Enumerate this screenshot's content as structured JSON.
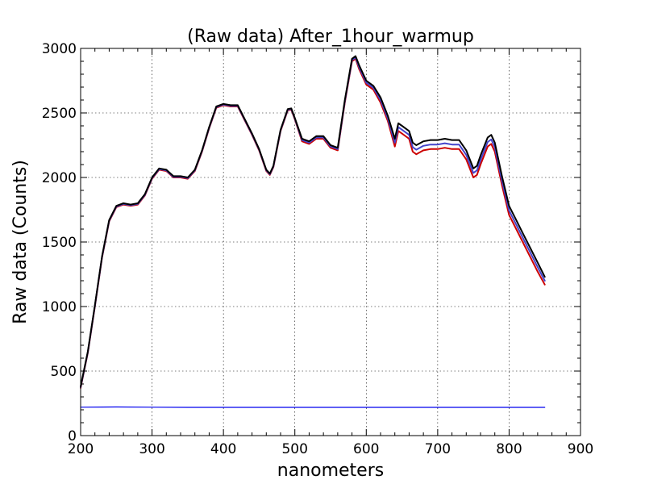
{
  "chart_data": {
    "type": "line",
    "title": "(Raw data) After_1hour_warmup",
    "xlabel": "nanometers",
    "ylabel": "Raw data (Counts)",
    "xlim": [
      200,
      900
    ],
    "ylim": [
      0,
      3000
    ],
    "x_ticks": [
      200,
      300,
      400,
      500,
      600,
      700,
      800,
      900
    ],
    "y_ticks": [
      0,
      500,
      1000,
      1500,
      2000,
      2500,
      3000
    ],
    "x_tick_labels": [
      "200",
      "300",
      "400",
      "500",
      "600",
      "700",
      "800",
      "900"
    ],
    "y_tick_labels": [
      "0",
      "500",
      "1000",
      "1500",
      "2000",
      "2500",
      "3000"
    ],
    "grid": true,
    "series": [
      {
        "color": "#cc0000",
        "x": [
          200,
          210,
          220,
          230,
          240,
          250,
          260,
          270,
          280,
          290,
          300,
          310,
          320,
          330,
          340,
          350,
          360,
          370,
          380,
          390,
          400,
          410,
          420,
          430,
          440,
          450,
          460,
          465,
          470,
          480,
          490,
          495,
          500,
          510,
          520,
          530,
          540,
          550,
          560,
          570,
          580,
          585,
          590,
          600,
          610,
          620,
          630,
          640,
          645,
          650,
          660,
          665,
          670,
          680,
          690,
          700,
          710,
          720,
          730,
          740,
          750,
          755,
          760,
          770,
          775,
          780,
          790,
          800,
          810,
          820,
          830,
          840,
          850
        ],
        "y": [
          370,
          640,
          1000,
          1380,
          1660,
          1770,
          1790,
          1780,
          1790,
          1860,
          1990,
          2060,
          2050,
          2000,
          2000,
          1990,
          2050,
          2200,
          2380,
          2540,
          2560,
          2550,
          2550,
          2440,
          2330,
          2210,
          2050,
          2020,
          2080,
          2360,
          2520,
          2525,
          2450,
          2280,
          2260,
          2300,
          2300,
          2230,
          2210,
          2580,
          2900,
          2920,
          2840,
          2720,
          2680,
          2580,
          2440,
          2240,
          2360,
          2340,
          2300,
          2200,
          2180,
          2210,
          2220,
          2220,
          2230,
          2220,
          2220,
          2140,
          2000,
          2020,
          2100,
          2240,
          2260,
          2200,
          1940,
          1710,
          1600,
          1490,
          1380,
          1270,
          1170
        ]
      },
      {
        "color": "#4444cc",
        "x": [
          200,
          210,
          220,
          230,
          240,
          250,
          260,
          270,
          280,
          290,
          300,
          310,
          320,
          330,
          340,
          350,
          360,
          370,
          380,
          390,
          400,
          410,
          420,
          430,
          440,
          450,
          460,
          465,
          470,
          480,
          490,
          495,
          500,
          510,
          520,
          530,
          540,
          550,
          560,
          570,
          580,
          585,
          590,
          600,
          610,
          620,
          630,
          640,
          645,
          650,
          660,
          665,
          670,
          680,
          690,
          700,
          710,
          720,
          730,
          740,
          750,
          755,
          760,
          770,
          775,
          780,
          790,
          800,
          810,
          820,
          830,
          840,
          850
        ],
        "y": [
          375,
          645,
          1005,
          1385,
          1665,
          1775,
          1795,
          1785,
          1795,
          1865,
          1995,
          2065,
          2055,
          2005,
          2005,
          1995,
          2055,
          2205,
          2385,
          2545,
          2565,
          2555,
          2555,
          2445,
          2335,
          2215,
          2055,
          2025,
          2085,
          2365,
          2525,
          2530,
          2455,
          2290,
          2270,
          2310,
          2310,
          2240,
          2220,
          2590,
          2910,
          2930,
          2855,
          2735,
          2695,
          2600,
          2460,
          2270,
          2390,
          2370,
          2330,
          2235,
          2215,
          2245,
          2255,
          2255,
          2265,
          2255,
          2255,
          2175,
          2035,
          2055,
          2135,
          2275,
          2295,
          2235,
          1975,
          1745,
          1635,
          1525,
          1415,
          1305,
          1200
        ]
      },
      {
        "color": "#000000",
        "x": [
          200,
          210,
          220,
          230,
          240,
          250,
          260,
          270,
          280,
          290,
          300,
          310,
          320,
          330,
          340,
          350,
          360,
          370,
          380,
          390,
          400,
          410,
          420,
          430,
          440,
          450,
          460,
          465,
          470,
          480,
          490,
          495,
          500,
          510,
          520,
          530,
          540,
          550,
          560,
          570,
          580,
          585,
          590,
          600,
          610,
          620,
          630,
          640,
          645,
          650,
          660,
          665,
          670,
          680,
          690,
          700,
          710,
          720,
          730,
          740,
          750,
          755,
          760,
          770,
          775,
          780,
          790,
          800,
          810,
          820,
          830,
          840,
          850
        ],
        "y": [
          380,
          650,
          1010,
          1390,
          1670,
          1780,
          1800,
          1790,
          1800,
          1870,
          2000,
          2070,
          2060,
          2010,
          2010,
          2000,
          2060,
          2210,
          2390,
          2550,
          2570,
          2560,
          2560,
          2450,
          2340,
          2220,
          2060,
          2030,
          2090,
          2370,
          2530,
          2535,
          2460,
          2300,
          2280,
          2320,
          2320,
          2250,
          2230,
          2600,
          2920,
          2940,
          2870,
          2750,
          2710,
          2620,
          2480,
          2300,
          2420,
          2400,
          2360,
          2270,
          2250,
          2280,
          2290,
          2290,
          2300,
          2290,
          2290,
          2210,
          2070,
          2090,
          2170,
          2310,
          2330,
          2270,
          2010,
          1780,
          1670,
          1560,
          1450,
          1340,
          1230
        ]
      },
      {
        "color": "#0000ee",
        "x": [
          200,
          250,
          300,
          350,
          400,
          450,
          500,
          550,
          600,
          650,
          700,
          750,
          800,
          850
        ],
        "y": [
          220,
          222,
          220,
          219,
          219,
          219,
          219,
          219,
          219,
          219,
          219,
          219,
          219,
          219
        ]
      }
    ]
  }
}
